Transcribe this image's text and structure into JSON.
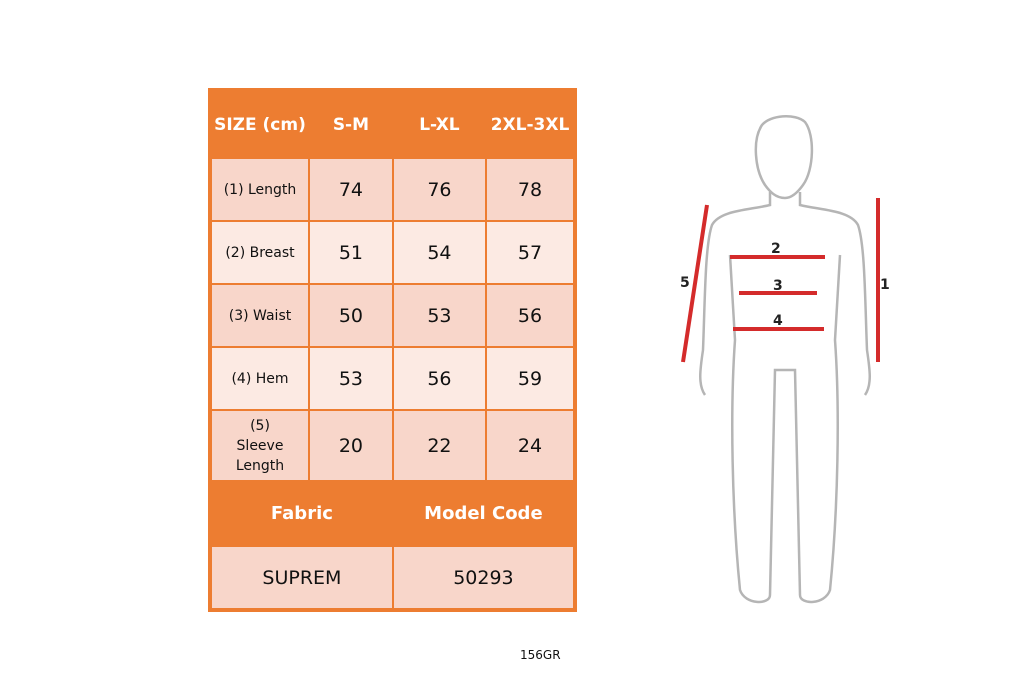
{
  "header": {
    "size_label": "SIZE (cm)",
    "sizes": [
      "S-M",
      "L-XL",
      "2XL-3XL"
    ]
  },
  "rows": [
    {
      "label": "(1) Length",
      "values": [
        "74",
        "76",
        "78"
      ]
    },
    {
      "label": "(2) Breast",
      "values": [
        "51",
        "54",
        "57"
      ]
    },
    {
      "label": "(3) Waist",
      "values": [
        "50",
        "53",
        "56"
      ]
    },
    {
      "label": "(4) Hem",
      "values": [
        "53",
        "56",
        "59"
      ]
    },
    {
      "label": "(5) Sleeve Length",
      "values": [
        "20",
        "22",
        "24"
      ]
    }
  ],
  "fabric": {
    "label": "Fabric",
    "value": "SUPREM"
  },
  "model_code": {
    "label": "Model Code",
    "value": "50293"
  },
  "weight": "156GR",
  "diagram": {
    "markers": [
      "1",
      "2",
      "3",
      "4",
      "5"
    ],
    "line_color": "#D42B2B",
    "outline_color": "#B5B5B5"
  },
  "colors": {
    "header": "#ED7D31",
    "cell_dark": "#F8D6CA",
    "cell_light": "#FCEAE3"
  }
}
